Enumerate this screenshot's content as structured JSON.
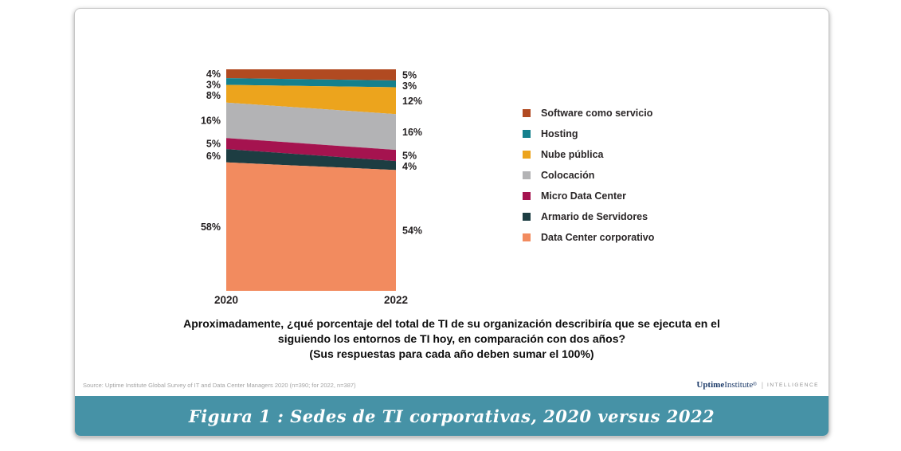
{
  "chart_data": {
    "type": "area",
    "stacked": true,
    "x": [
      "2020",
      "2022"
    ],
    "title": "",
    "ylim": [
      0,
      100
    ],
    "grid": false,
    "legend_position": "right",
    "series": [
      {
        "name": "Software como servicio",
        "color": "#b14a21",
        "values": [
          4,
          5
        ]
      },
      {
        "name": "Hosting",
        "color": "#15808d",
        "values": [
          3,
          3
        ]
      },
      {
        "name": "Nube pública",
        "color": "#eca41d",
        "values": [
          8,
          12
        ]
      },
      {
        "name": "Colocación",
        "color": "#b3b3b5",
        "values": [
          16,
          16
        ]
      },
      {
        "name": "Micro Data Center",
        "color": "#a5134f",
        "values": [
          5,
          5
        ]
      },
      {
        "name": "Armario de Servidores",
        "color": "#1d3d42",
        "values": [
          6,
          4
        ]
      },
      {
        "name": "Data Center corporativo",
        "color": "#f28b5f",
        "values": [
          58,
          54
        ]
      }
    ],
    "value_labels": {
      "2020": [
        "4%",
        "3%",
        "8%",
        "16%",
        "5%",
        "6%",
        "58%"
      ],
      "2022": [
        "5%",
        "3%",
        "12%",
        "16%",
        "5%",
        "4%",
        "54%"
      ]
    }
  },
  "question": {
    "lines": [
      "Aproximadamente, ¿qué porcentaje del total de TI de su organización describiría que se ejecuta en el",
      "siguiendo los entornos de TI hoy, en comparación con dos años?",
      "(Sus respuestas para cada año deben sumar el 100%)"
    ]
  },
  "source": {
    "text": "Source: Uptime Institute Global Survey of IT and Data Center Managers 2020 (n=390; for 2022, n=387)"
  },
  "branding": {
    "brand_bold": "Uptime",
    "brand_light": "Institute",
    "registered": "®",
    "divider": "|",
    "suffix": "INTELLIGENCE"
  },
  "caption": {
    "text": "Figura 1 : Sedes de TI corporativas, 2020 versus 2022"
  }
}
